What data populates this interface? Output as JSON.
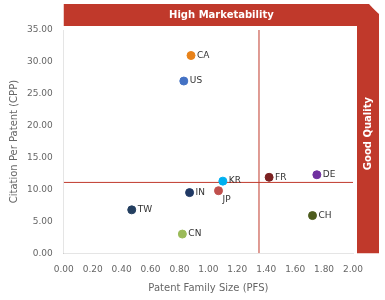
{
  "chart_data": {
    "type": "scatter",
    "xlabel": "Patent Family Size (PFS)",
    "ylabel": "Citation Per Patent (CPP)",
    "point_labels": [
      "CA",
      "US",
      "KR",
      "JP",
      "IN",
      "TW",
      "CN",
      "FR",
      "DE",
      "CH"
    ],
    "x": [
      0.88,
      0.83,
      1.1,
      1.07,
      0.87,
      0.47,
      0.82,
      1.42,
      1.75,
      1.72
    ],
    "values": [
      31.0,
      27.0,
      11.3,
      9.8,
      9.5,
      6.8,
      3.0,
      11.9,
      12.3,
      5.9
    ],
    "colors": [
      "#E8821A",
      "#4472C4",
      "#00B0F0",
      "#C0504D",
      "#1F3864",
      "#243F60",
      "#9BBB59",
      "#7B2222",
      "#7030A0",
      "#4D5C1E"
    ],
    "reference_lines": {
      "x": 1.35,
      "y": 11.1,
      "color": "#C0392B"
    },
    "annotations": [
      {
        "text": "High Marketability",
        "position": "top",
        "color": "#C0392B"
      },
      {
        "text": "Good Quality",
        "position": "right",
        "color": "#C0392B"
      }
    ],
    "xlim": [
      0.0,
      2.0
    ],
    "ylim": [
      0.0,
      35.0
    ],
    "xticks": [
      {
        "value": 0.0,
        "label": "0.00"
      },
      {
        "value": 0.2,
        "label": "0.20"
      },
      {
        "value": 0.4,
        "label": "0.40"
      },
      {
        "value": 0.6,
        "label": "0.60"
      },
      {
        "value": 0.8,
        "label": "0.80"
      },
      {
        "value": 1.0,
        "label": "1.00"
      },
      {
        "value": 1.2,
        "label": "1.20"
      },
      {
        "value": 1.4,
        "label": "1.40"
      },
      {
        "value": 1.6,
        "label": "1.60"
      },
      {
        "value": 1.8,
        "label": "1.80"
      },
      {
        "value": 2.0,
        "label": "2.00"
      }
    ],
    "yticks": [
      {
        "value": 0.0,
        "label": "0.00"
      },
      {
        "value": 5.0,
        "label": "5.00"
      },
      {
        "value": 10.0,
        "label": "10.00"
      },
      {
        "value": 15.0,
        "label": "15.00"
      },
      {
        "value": 20.0,
        "label": "20.00"
      },
      {
        "value": 25.0,
        "label": "25.00"
      },
      {
        "value": 30.0,
        "label": "30.00"
      },
      {
        "value": 35.0,
        "label": "35.00"
      }
    ],
    "grid": false
  }
}
